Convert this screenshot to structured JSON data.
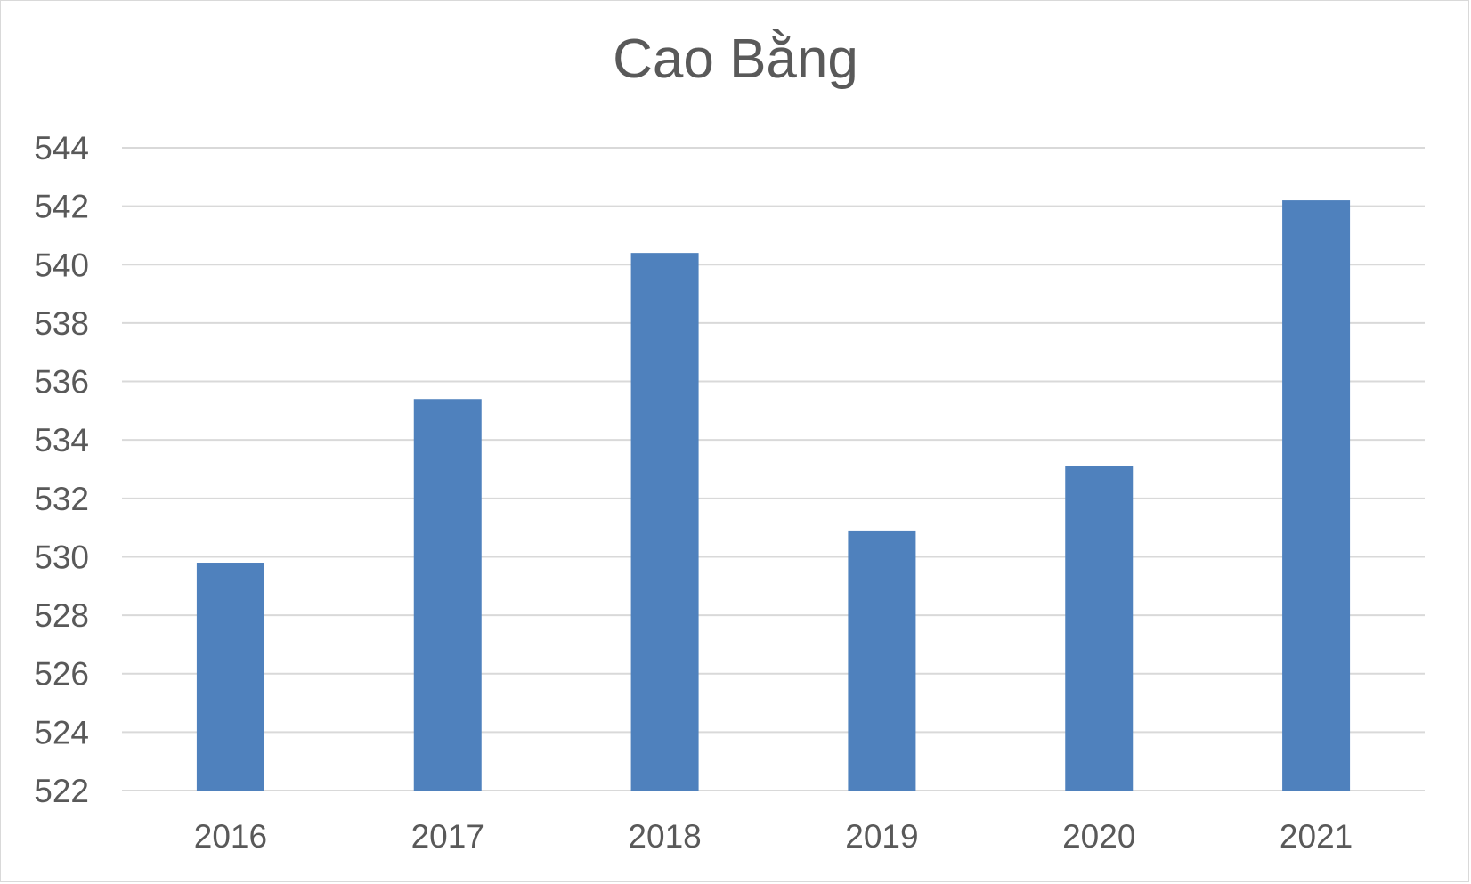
{
  "chart_data": {
    "type": "bar",
    "title": "Cao Bằng",
    "categories": [
      "2016",
      "2017",
      "2018",
      "2019",
      "2020",
      "2021"
    ],
    "values": [
      529.8,
      535.4,
      540.4,
      530.9,
      533.1,
      542.2
    ],
    "xlabel": "",
    "ylabel": "",
    "ylim": [
      522,
      544
    ],
    "yticks": [
      "522",
      "524",
      "526",
      "528",
      "530",
      "532",
      "534",
      "536",
      "538",
      "540",
      "542",
      "544"
    ],
    "grid": true,
    "legend": "none",
    "bar_color": "#4f81bd",
    "grid_color": "#d9d9d9"
  }
}
